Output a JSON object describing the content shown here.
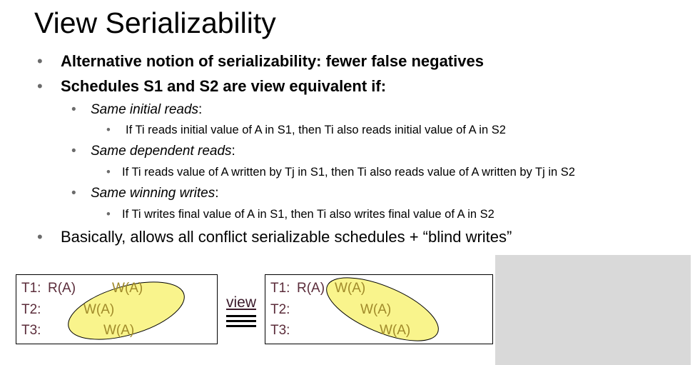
{
  "slide": {
    "title": "View Serializability",
    "bullets": [
      {
        "text": "Alternative notion of serializability: fewer false negatives"
      },
      {
        "text": "Schedules S1 and S2 are view equivalent if:",
        "subs": [
          {
            "label": "Same initial reads",
            "suffix": ":",
            "detail": "If Ti reads initial value of A in S1, then Ti also reads initial value of A in S2"
          },
          {
            "label": "Same dependent reads",
            "suffix": ":",
            "detail": "If Ti reads value of A written by Tj in S1, then Ti also reads value of A written by Tj in S2"
          },
          {
            "label": "Same winning writes",
            "suffix": ":",
            "detail": "If Ti writes final value of A in S1, then Ti also writes final value of A in S2"
          }
        ]
      },
      {
        "text": "Basically, allows all conflict serializable schedules + “blind writes”"
      }
    ]
  },
  "schedule_left": {
    "rows": [
      {
        "txn": "T1:",
        "op1": "R(A)",
        "op2": "W(A)"
      },
      {
        "txn": "T2:",
        "op1": "W(A)"
      },
      {
        "txn": "T3:",
        "op1": "W(A)"
      }
    ]
  },
  "equivalence": {
    "label": "view"
  },
  "schedule_right": {
    "rows": [
      {
        "txn": "T1:",
        "op1": "R(A)",
        "op2": "W(A)"
      },
      {
        "txn": "T2:",
        "op1": "W(A)"
      },
      {
        "txn": "T3:",
        "op1": "W(A)"
      }
    ]
  },
  "colors": {
    "highlight_fill": "#f9f48c",
    "highlight_stroke": "#000000",
    "txn_text": "#5b2c3a",
    "write_text": "#a08a2a",
    "bullet": "#6b6b6b",
    "placeholder_box": "#d9d9d9"
  }
}
